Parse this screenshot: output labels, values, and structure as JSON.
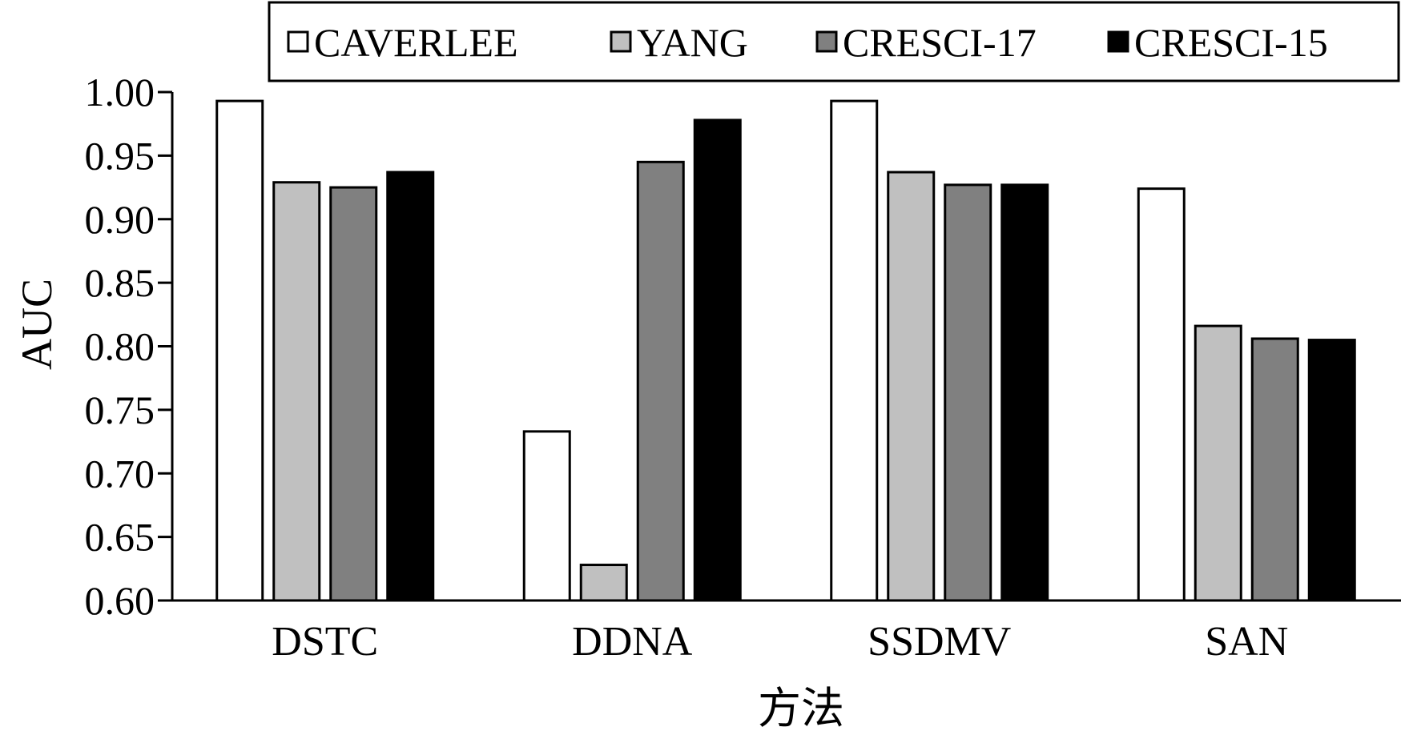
{
  "chart_data": {
    "type": "bar",
    "categories": [
      "DSTC",
      "DDNA",
      "SSDMV",
      "SAN"
    ],
    "series": [
      {
        "name": "CAVERLEE",
        "color": "#ffffff",
        "values": [
          0.993,
          0.733,
          0.993,
          0.924
        ]
      },
      {
        "name": "YANG",
        "color": "#c0c0c0",
        "values": [
          0.929,
          0.628,
          0.937,
          0.816
        ]
      },
      {
        "name": "CRESCI-17",
        "color": "#808080",
        "values": [
          0.925,
          0.945,
          0.927,
          0.806
        ]
      },
      {
        "name": "CRESCI-15",
        "color": "#000000",
        "values": [
          0.937,
          0.978,
          0.927,
          0.805
        ]
      }
    ],
    "xlabel": "方法",
    "ylabel": "AUC",
    "ylim": [
      0.6,
      1.0
    ],
    "yticks": [
      "0.60",
      "0.65",
      "0.70",
      "0.75",
      "0.80",
      "0.85",
      "0.90",
      "0.95",
      "1.00"
    ],
    "grid": false,
    "legend_position": "top"
  }
}
